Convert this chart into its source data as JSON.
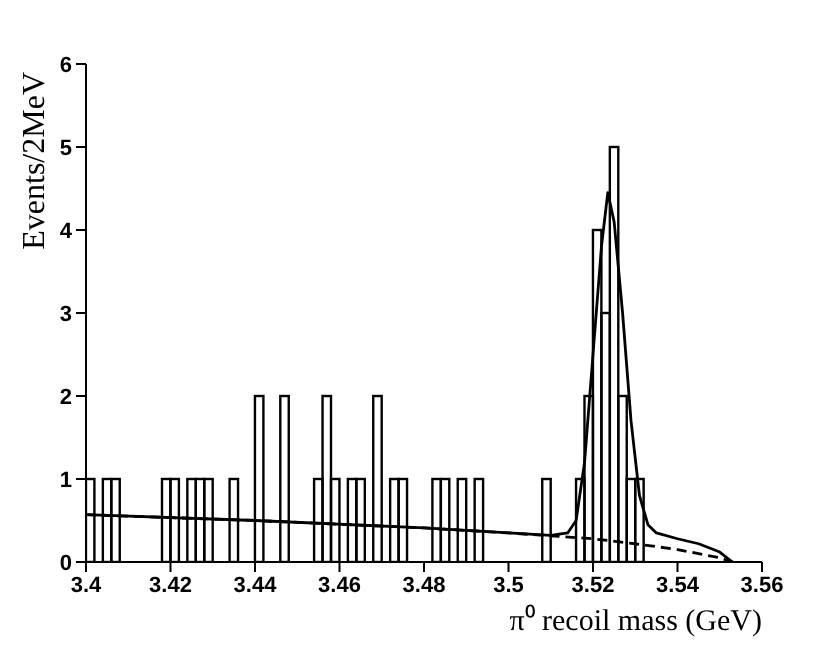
{
  "chart_data": {
    "type": "histogram",
    "xlabel": "π⁰ recoil mass (GeV)",
    "ylabel": "Events/2MeV",
    "color": "#000000",
    "bins": [
      3.4,
      3.402,
      3.404,
      3.406,
      3.408,
      3.41,
      3.412,
      3.414,
      3.416,
      3.418,
      3.42,
      3.422,
      3.424,
      3.426,
      3.428,
      3.43,
      3.432,
      3.434,
      3.436,
      3.438,
      3.44,
      3.442,
      3.444,
      3.446,
      3.448,
      3.45,
      3.452,
      3.454,
      3.456,
      3.458,
      3.46,
      3.462,
      3.464,
      3.466,
      3.468,
      3.47,
      3.472,
      3.474,
      3.476,
      3.478,
      3.48,
      3.482,
      3.484,
      3.486,
      3.488,
      3.49,
      3.492,
      3.494,
      3.496,
      3.498,
      3.5,
      3.502,
      3.504,
      3.506,
      3.508,
      3.51,
      3.512,
      3.514,
      3.516,
      3.518,
      3.52,
      3.522,
      3.524,
      3.526,
      3.528,
      3.53,
      3.532,
      3.534,
      3.536,
      3.538,
      3.54,
      3.542,
      3.544,
      3.546,
      3.548,
      3.55,
      3.552,
      3.554,
      3.556,
      3.558,
      3.56
    ],
    "values": [
      1,
      0,
      1,
      1,
      0,
      0,
      0,
      0,
      0,
      1,
      1,
      0,
      1,
      1,
      1,
      0,
      0,
      1,
      0,
      0,
      2,
      0,
      0,
      2,
      0,
      0,
      0,
      1,
      2,
      1,
      0,
      1,
      1,
      0,
      2,
      0,
      1,
      1,
      0,
      0,
      0,
      1,
      1,
      0,
      1,
      0,
      1,
      0,
      0,
      0,
      0,
      0,
      0,
      0,
      1,
      0,
      0,
      0,
      1,
      2,
      4,
      3,
      5,
      2,
      1,
      1,
      0,
      0,
      0,
      0,
      0,
      0,
      0,
      0,
      0,
      0,
      0,
      0,
      0,
      0
    ],
    "series": [
      {
        "type": "line",
        "color": "#000000",
        "line_style": "solid",
        "x": [
          3.4,
          3.44,
          3.48,
          3.5,
          3.51,
          3.514,
          3.516,
          3.518,
          3.52,
          3.522,
          3.5235,
          3.525,
          3.527,
          3.529,
          3.531,
          3.533,
          3.535,
          3.54,
          3.545,
          3.55,
          3.553
        ],
        "values": [
          0.57,
          0.5,
          0.41,
          0.35,
          0.32,
          0.35,
          0.5,
          1.2,
          2.5,
          3.8,
          4.45,
          4.1,
          3.0,
          1.7,
          0.8,
          0.45,
          0.35,
          0.28,
          0.22,
          0.12,
          0
        ]
      },
      {
        "type": "line",
        "color": "#000000",
        "line_style": "dashed",
        "x": [
          3.4,
          3.44,
          3.48,
          3.5,
          3.52,
          3.53,
          3.54,
          3.55,
          3.553
        ],
        "values": [
          0.57,
          0.5,
          0.41,
          0.35,
          0.28,
          0.22,
          0.15,
          0.05,
          0
        ]
      }
    ],
    "xlim": [
      3.4,
      3.56
    ],
    "xticks": [
      3.4,
      3.42,
      3.44,
      3.46,
      3.48,
      3.5,
      3.52,
      3.54,
      3.56
    ],
    "ylim": [
      0,
      6
    ],
    "yticks": [
      0,
      1,
      2,
      3,
      4,
      5,
      6
    ],
    "grid": false,
    "legend": false,
    "marker": "none"
  }
}
